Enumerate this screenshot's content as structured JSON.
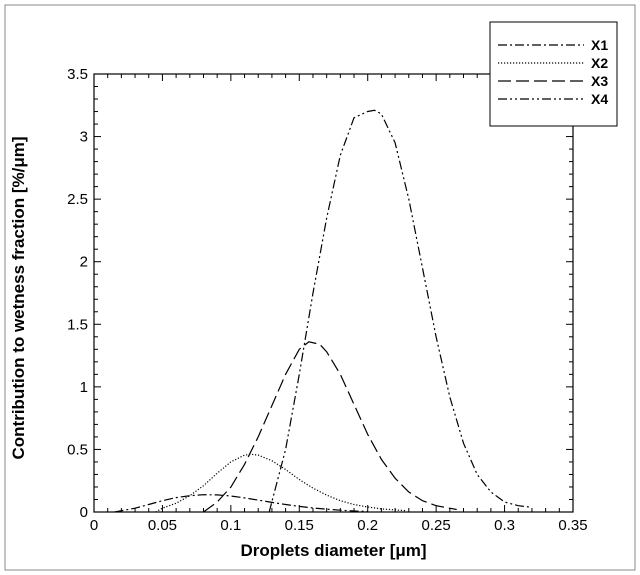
{
  "chart_data": {
    "type": "line",
    "title": "",
    "xlabel": "Droplets diameter [μm]",
    "ylabel": "Contribution to wetness fraction [%/μm]",
    "xlim": [
      0,
      0.35
    ],
    "ylim": [
      0,
      3.5
    ],
    "x_ticks": [
      "0",
      "0.05",
      "0.1",
      "0.15",
      "0.2",
      "0.25",
      "0.3",
      "0.35"
    ],
    "y_ticks": [
      "0",
      "0.5",
      "1",
      "1.5",
      "2",
      "2.5",
      "3",
      "3.5"
    ],
    "grid": false,
    "legend_position": "top-right",
    "series": [
      {
        "name": "X1",
        "dash": "dash-dot",
        "x": [
          0.015,
          0.03,
          0.04,
          0.05,
          0.06,
          0.07,
          0.08,
          0.09,
          0.1,
          0.11,
          0.12,
          0.13,
          0.14,
          0.15,
          0.16,
          0.17,
          0.18,
          0.19,
          0.2
        ],
        "y": [
          0.0,
          0.03,
          0.06,
          0.09,
          0.115,
          0.13,
          0.138,
          0.137,
          0.128,
          0.113,
          0.095,
          0.077,
          0.06,
          0.045,
          0.032,
          0.022,
          0.014,
          0.008,
          0.004
        ]
      },
      {
        "name": "X2",
        "dash": "dotted",
        "x": [
          0.045,
          0.05,
          0.06,
          0.07,
          0.08,
          0.09,
          0.1,
          0.11,
          0.115,
          0.12,
          0.13,
          0.14,
          0.15,
          0.16,
          0.17,
          0.18,
          0.19,
          0.2,
          0.21,
          0.228
        ],
        "y": [
          0.0,
          0.03,
          0.07,
          0.13,
          0.21,
          0.31,
          0.4,
          0.455,
          0.46,
          0.455,
          0.41,
          0.34,
          0.26,
          0.19,
          0.135,
          0.09,
          0.06,
          0.04,
          0.025,
          0.01
        ]
      },
      {
        "name": "X3",
        "dash": "long-dash",
        "x": [
          0.08,
          0.09,
          0.1,
          0.11,
          0.12,
          0.13,
          0.14,
          0.15,
          0.157,
          0.165,
          0.17,
          0.18,
          0.19,
          0.2,
          0.21,
          0.22,
          0.23,
          0.24,
          0.25,
          0.265
        ],
        "y": [
          0.0,
          0.08,
          0.2,
          0.38,
          0.6,
          0.85,
          1.1,
          1.3,
          1.36,
          1.34,
          1.28,
          1.1,
          0.86,
          0.62,
          0.42,
          0.27,
          0.16,
          0.09,
          0.05,
          0.02
        ]
      },
      {
        "name": "X4",
        "dash": "dash-dot-dot",
        "x": [
          0.128,
          0.14,
          0.15,
          0.16,
          0.17,
          0.18,
          0.19,
          0.2,
          0.205,
          0.21,
          0.22,
          0.23,
          0.24,
          0.25,
          0.26,
          0.27,
          0.28,
          0.29,
          0.3,
          0.31,
          0.318
        ],
        "y": [
          0.0,
          0.5,
          1.1,
          1.75,
          2.35,
          2.85,
          3.15,
          3.2,
          3.21,
          3.18,
          2.95,
          2.5,
          1.95,
          1.4,
          0.92,
          0.55,
          0.3,
          0.16,
          0.08,
          0.05,
          0.04
        ]
      }
    ]
  }
}
